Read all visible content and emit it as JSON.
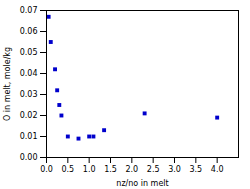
{
  "chart_data": {
    "type": "scatter",
    "x": [
      0.05,
      0.1,
      0.2,
      0.25,
      0.3,
      0.35,
      0.5,
      0.75,
      1.0,
      1.1,
      1.35,
      2.3,
      4.0
    ],
    "y": [
      0.067,
      0.055,
      0.042,
      0.032,
      0.025,
      0.02,
      0.01,
      0.009,
      0.01,
      0.01,
      0.013,
      0.021,
      0.019
    ],
    "xlabel": "nz/no in melt",
    "ylabel": "O in melt, mole/kg",
    "xlim": [
      0,
      4.5
    ],
    "ylim": [
      0,
      0.07
    ],
    "xticks": [
      {
        "value": 0,
        "label": "0.0"
      },
      0.5,
      {
        "value": 1,
        "label": "1.0"
      },
      1.5,
      {
        "value": 2,
        "label": "2.0"
      },
      2.5,
      {
        "value": 3,
        "label": "3.0"
      },
      3.5,
      {
        "value": 4,
        "label": "4.0"
      }
    ],
    "yticks": [
      {
        "value": 0,
        "label": "0.00"
      },
      0.01,
      0.02,
      0.03,
      0.04,
      0.05,
      0.06,
      0.07
    ],
    "color": "#0000CC",
    "marker": "square",
    "grid": false
  }
}
